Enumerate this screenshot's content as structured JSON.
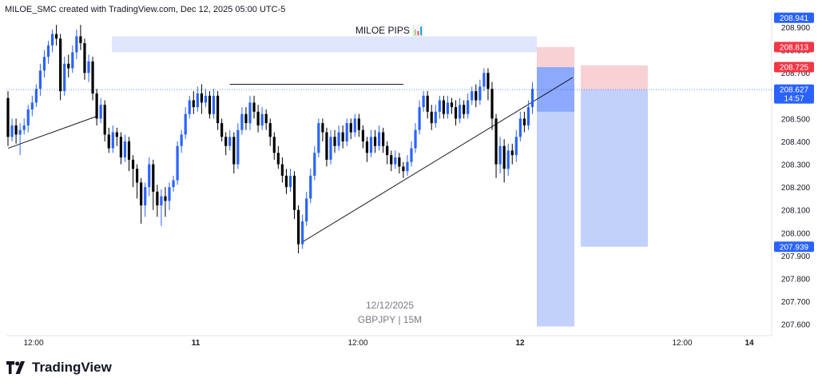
{
  "header": {
    "attribution": "MILOE_SMC created with TradingView.com, Dec 12, 2025 05:00 UTC-5"
  },
  "overlay": {
    "title": "MILOE PIPS 📊",
    "date": "12/12/2025",
    "symbol": "GBPJPY | 15M"
  },
  "brand": {
    "name": "TradingView"
  },
  "colors": {
    "up": "#2962ff",
    "down": "#000000",
    "stop_zone": "#f7c9cc",
    "target_zone": "#b7c8fb",
    "supply_zone": "#d7e2fd"
  },
  "chart_data": {
    "type": "candlestick",
    "x_ticks": [
      "12:00",
      "11",
      "12:00",
      "12",
      "12:00",
      "14"
    ],
    "y_ticks": [
      "208.900",
      "208.800",
      "208.700",
      "208.600",
      "208.500",
      "208.400",
      "208.300",
      "208.200",
      "208.100",
      "208.000",
      "207.900",
      "207.800",
      "207.700",
      "207.600"
    ],
    "ylim": [
      207.55,
      208.97
    ],
    "price_labels": [
      {
        "text": "208.941",
        "value": 208.941,
        "color": "#2962ff"
      },
      {
        "text": "208.813",
        "value": 208.813,
        "color": "#f23645"
      },
      {
        "text": "208.725",
        "value": 208.725,
        "color": "#f23645"
      },
      {
        "text": "208.627",
        "sub": "14:57",
        "value": 208.627,
        "color": "#2962ff"
      },
      {
        "text": "207.939",
        "value": 207.939,
        "color": "#2962ff"
      }
    ],
    "current_price": 208.627,
    "candles": [
      [
        208.59,
        208.42,
        208.62,
        208.38
      ],
      [
        208.42,
        208.47,
        208.5,
        208.4
      ],
      [
        208.47,
        208.43,
        208.5,
        208.39
      ],
      [
        208.43,
        208.45,
        208.48,
        208.34
      ],
      [
        208.45,
        208.47,
        208.5,
        208.43
      ],
      [
        208.47,
        208.54,
        208.56,
        208.44
      ],
      [
        208.54,
        208.57,
        208.6,
        208.51
      ],
      [
        208.57,
        208.63,
        208.65,
        208.55
      ],
      [
        208.63,
        208.71,
        208.74,
        208.6
      ],
      [
        208.71,
        208.77,
        208.8,
        208.68
      ],
      [
        208.77,
        208.82,
        208.84,
        208.74
      ],
      [
        208.82,
        208.87,
        208.89,
        208.79
      ],
      [
        208.87,
        208.85,
        208.91,
        208.82
      ],
      [
        208.85,
        208.62,
        208.87,
        208.58
      ],
      [
        208.62,
        208.74,
        208.77,
        208.6
      ],
      [
        208.74,
        208.72,
        208.78,
        208.68
      ],
      [
        208.72,
        208.79,
        208.82,
        208.7
      ],
      [
        208.79,
        208.86,
        208.89,
        208.76
      ],
      [
        208.86,
        208.83,
        208.91,
        208.8
      ],
      [
        208.83,
        208.7,
        208.85,
        208.67
      ],
      [
        208.7,
        208.75,
        208.78,
        208.66
      ],
      [
        208.75,
        208.61,
        208.77,
        208.58
      ],
      [
        208.61,
        208.5,
        208.63,
        208.47
      ],
      [
        208.5,
        208.56,
        208.59,
        208.48
      ],
      [
        208.56,
        208.43,
        208.58,
        208.4
      ],
      [
        208.43,
        208.37,
        208.46,
        208.35
      ],
      [
        208.37,
        208.44,
        208.47,
        208.35
      ],
      [
        208.44,
        208.42,
        208.46,
        208.38
      ],
      [
        208.42,
        208.33,
        208.44,
        208.3
      ],
      [
        208.33,
        208.4,
        208.43,
        208.31
      ],
      [
        208.4,
        208.32,
        208.42,
        208.27
      ],
      [
        208.32,
        208.28,
        208.34,
        208.2
      ],
      [
        208.28,
        208.22,
        208.3,
        208.15
      ],
      [
        208.22,
        208.12,
        208.24,
        208.04
      ],
      [
        208.12,
        208.2,
        208.22,
        208.07
      ],
      [
        208.2,
        208.3,
        208.33,
        208.16
      ],
      [
        208.3,
        208.18,
        208.32,
        208.1
      ],
      [
        208.18,
        208.12,
        208.21,
        208.07
      ],
      [
        208.12,
        208.16,
        208.19,
        208.03
      ],
      [
        208.16,
        208.14,
        208.2,
        208.07
      ],
      [
        208.14,
        208.2,
        208.22,
        208.1
      ],
      [
        208.2,
        208.23,
        208.25,
        208.18
      ],
      [
        208.23,
        208.38,
        208.4,
        208.21
      ],
      [
        208.38,
        208.43,
        208.45,
        208.35
      ],
      [
        208.43,
        208.52,
        208.55,
        208.41
      ],
      [
        208.52,
        208.58,
        208.6,
        208.5
      ],
      [
        208.58,
        208.55,
        208.62,
        208.52
      ],
      [
        208.55,
        208.61,
        208.64,
        208.53
      ],
      [
        208.61,
        208.57,
        208.65,
        208.52
      ],
      [
        208.57,
        208.6,
        208.63,
        208.55
      ],
      [
        208.6,
        208.52,
        208.62,
        208.5
      ],
      [
        208.52,
        208.6,
        208.63,
        208.5
      ],
      [
        208.6,
        208.48,
        208.62,
        208.45
      ],
      [
        208.48,
        208.42,
        208.5,
        208.4
      ],
      [
        208.42,
        208.38,
        208.44,
        208.34
      ],
      [
        208.38,
        208.42,
        208.45,
        208.36
      ],
      [
        208.42,
        208.3,
        208.44,
        208.26
      ],
      [
        208.3,
        208.45,
        208.48,
        208.28
      ],
      [
        208.45,
        208.52,
        208.55,
        208.43
      ],
      [
        208.52,
        208.48,
        208.55,
        208.45
      ],
      [
        208.48,
        208.57,
        208.6,
        208.45
      ],
      [
        208.57,
        208.53,
        208.6,
        208.5
      ],
      [
        208.53,
        208.47,
        208.56,
        208.44
      ],
      [
        208.47,
        208.52,
        208.55,
        208.45
      ],
      [
        208.52,
        208.48,
        208.54,
        208.45
      ],
      [
        208.48,
        208.42,
        208.5,
        208.38
      ],
      [
        208.42,
        208.35,
        208.44,
        208.32
      ],
      [
        208.35,
        208.3,
        208.38,
        208.28
      ],
      [
        208.3,
        208.25,
        208.33,
        208.22
      ],
      [
        208.25,
        208.2,
        208.28,
        208.17
      ],
      [
        208.2,
        208.25,
        208.28,
        208.18
      ],
      [
        208.25,
        208.1,
        208.27,
        208.06
      ],
      [
        208.1,
        207.95,
        208.12,
        207.91
      ],
      [
        207.95,
        208.05,
        208.08,
        207.93
      ],
      [
        208.05,
        208.15,
        208.18,
        208.03
      ],
      [
        208.15,
        208.25,
        208.28,
        208.13
      ],
      [
        208.25,
        208.35,
        208.38,
        208.23
      ],
      [
        208.35,
        208.48,
        208.5,
        208.33
      ],
      [
        208.48,
        208.44,
        208.5,
        208.4
      ],
      [
        208.44,
        208.32,
        208.46,
        208.29
      ],
      [
        208.32,
        208.42,
        208.45,
        208.3
      ],
      [
        208.42,
        208.38,
        208.45,
        208.35
      ],
      [
        208.38,
        208.44,
        208.47,
        208.36
      ],
      [
        208.44,
        208.4,
        208.47,
        208.37
      ],
      [
        208.4,
        208.48,
        208.5,
        208.38
      ],
      [
        208.48,
        208.44,
        208.5,
        208.41
      ],
      [
        208.44,
        208.5,
        208.52,
        208.42
      ],
      [
        208.5,
        208.45,
        208.52,
        208.42
      ],
      [
        208.45,
        208.4,
        208.47,
        208.37
      ],
      [
        208.4,
        208.35,
        208.42,
        208.31
      ],
      [
        208.35,
        208.42,
        208.45,
        208.33
      ],
      [
        208.42,
        208.38,
        208.45,
        208.35
      ],
      [
        208.38,
        208.44,
        208.47,
        208.36
      ],
      [
        208.44,
        208.38,
        208.46,
        208.35
      ],
      [
        208.38,
        208.34,
        208.4,
        208.3
      ],
      [
        208.34,
        208.3,
        208.36,
        208.27
      ],
      [
        208.3,
        208.33,
        208.36,
        208.28
      ],
      [
        208.33,
        208.29,
        208.35,
        208.26
      ],
      [
        208.29,
        208.27,
        208.31,
        208.24
      ],
      [
        208.27,
        208.31,
        208.34,
        208.25
      ],
      [
        208.31,
        208.37,
        208.4,
        208.29
      ],
      [
        208.37,
        208.45,
        208.48,
        208.35
      ],
      [
        208.45,
        208.55,
        208.58,
        208.43
      ],
      [
        208.55,
        208.6,
        208.62,
        208.53
      ],
      [
        208.6,
        208.53,
        208.62,
        208.5
      ],
      [
        208.53,
        208.48,
        208.56,
        208.45
      ],
      [
        208.48,
        208.53,
        208.56,
        208.46
      ],
      [
        208.53,
        208.58,
        208.6,
        208.5
      ],
      [
        208.58,
        208.52,
        208.6,
        208.5
      ],
      [
        208.52,
        208.57,
        208.6,
        208.5
      ],
      [
        208.57,
        208.55,
        208.59,
        208.52
      ],
      [
        208.55,
        208.5,
        208.58,
        208.47
      ],
      [
        208.5,
        208.56,
        208.59,
        208.48
      ],
      [
        208.56,
        208.52,
        208.58,
        208.5
      ],
      [
        208.52,
        208.58,
        208.61,
        208.5
      ],
      [
        208.58,
        208.62,
        208.64,
        208.56
      ],
      [
        208.62,
        208.58,
        208.65,
        208.55
      ],
      [
        208.58,
        208.64,
        208.67,
        208.56
      ],
      [
        208.64,
        208.7,
        208.72,
        208.62
      ],
      [
        208.7,
        208.63,
        208.72,
        208.58
      ],
      [
        208.63,
        208.5,
        208.66,
        208.45
      ],
      [
        208.5,
        208.3,
        208.52,
        208.24
      ],
      [
        208.3,
        208.38,
        208.42,
        208.26
      ],
      [
        208.38,
        208.28,
        208.41,
        208.22
      ],
      [
        208.28,
        208.36,
        208.39,
        208.25
      ],
      [
        208.36,
        208.34,
        208.39,
        208.3
      ],
      [
        208.34,
        208.42,
        208.45,
        208.31
      ],
      [
        208.42,
        208.5,
        208.53,
        208.4
      ],
      [
        208.5,
        208.47,
        208.53,
        208.44
      ],
      [
        208.47,
        208.55,
        208.58,
        208.45
      ],
      [
        208.55,
        208.63,
        208.66,
        208.52
      ]
    ],
    "trendlines": [
      {
        "from": [
          0,
          208.37
        ],
        "to": [
          22,
          208.51
        ]
      },
      {
        "from": [
          73,
          207.96
        ],
        "to": [
          140,
          208.68
        ]
      },
      {
        "from": [
          55,
          208.65
        ],
        "to": [
          98,
          208.65
        ]
      }
    ]
  }
}
